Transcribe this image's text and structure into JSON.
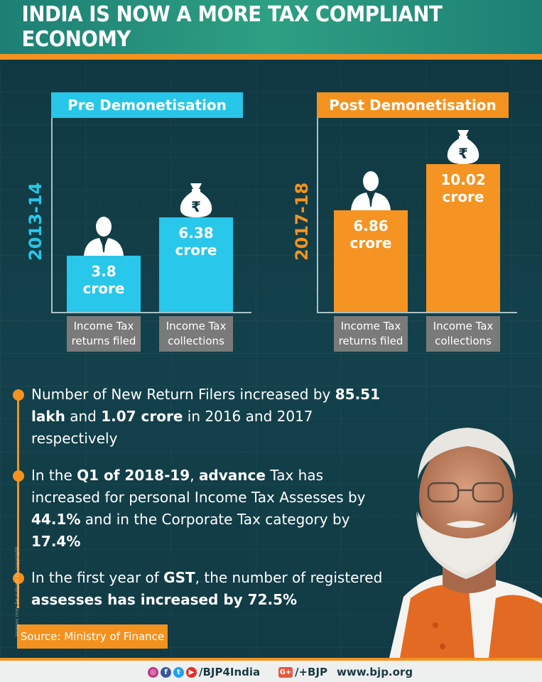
{
  "header": {
    "title": "INDIA IS NOW A MORE TAX COMPLIANT ECONOMY"
  },
  "chart_data": [
    {
      "type": "bar",
      "title": "Pre Demonetisation",
      "period": "2013-14",
      "categories": [
        "Income Tax returns filed",
        "Income Tax collections"
      ],
      "category_lines": [
        [
          "Income Tax",
          "returns filed"
        ],
        [
          "Income Tax",
          "collections"
        ]
      ],
      "values": [
        3.8,
        6.38
      ],
      "value_labels": [
        [
          "3.8",
          "crore"
        ],
        [
          "6.38",
          "crore"
        ]
      ],
      "unit": "crore",
      "icons": [
        "person-icon",
        "money-bag-icon"
      ],
      "color": "#29c7ea",
      "grid": false,
      "legend": "none"
    },
    {
      "type": "bar",
      "title": "Post Demonetisation",
      "period": "2017-18",
      "categories": [
        "Income Tax returns filed",
        "Income Tax collections"
      ],
      "category_lines": [
        [
          "Income Tax",
          "returns filed"
        ],
        [
          "Income Tax",
          "collections"
        ]
      ],
      "values": [
        6.86,
        10.02
      ],
      "value_labels": [
        [
          "6.86",
          "crore"
        ],
        [
          "10.02",
          "crore"
        ]
      ],
      "unit": "crore",
      "icons": [
        "person-icon",
        "money-bag-icon"
      ],
      "color": "#f59422",
      "grid": false,
      "legend": "none"
    }
  ],
  "bullets": [
    {
      "parts": [
        {
          "t": "Number of New Return Filers increased by ",
          "b": false
        },
        {
          "t": "85.51 lakh",
          "b": true
        },
        {
          "t": " and ",
          "b": false
        },
        {
          "t": "1.07 crore",
          "b": true
        },
        {
          "t": " in 2016 and 2017 respectively",
          "b": false
        }
      ]
    },
    {
      "parts": [
        {
          "t": "In the ",
          "b": false
        },
        {
          "t": "Q1 of 2018-19",
          "b": true
        },
        {
          "t": ", ",
          "b": false
        },
        {
          "t": "advance",
          "b": true
        },
        {
          "t": " Tax has increased for personal Income Tax Assesses by ",
          "b": false
        },
        {
          "t": "44.1%",
          "b": true
        },
        {
          "t": " and in the Corporate Tax category by ",
          "b": false
        },
        {
          "t": "17.4%",
          "b": true
        }
      ]
    },
    {
      "parts": [
        {
          "t": "In the first year of ",
          "b": false
        },
        {
          "t": "GST",
          "b": true
        },
        {
          "t": ", the number of registered ",
          "b": false
        },
        {
          "t": "assesses has increased by 72.5%",
          "b": true
        }
      ]
    }
  ],
  "source": "Source: Ministry of Finance",
  "copyright": "Images may be subject to copyright",
  "footer": {
    "handle": "/BJP4India",
    "gplus": "/+BJP",
    "website": "www.bjp.org",
    "social_icons": [
      "instagram-icon",
      "facebook-icon",
      "twitter-icon",
      "youtube-icon"
    ]
  },
  "colors": {
    "pre": "#29c7ea",
    "post": "#f59422",
    "background": "#123943",
    "header": "#2ea083"
  }
}
